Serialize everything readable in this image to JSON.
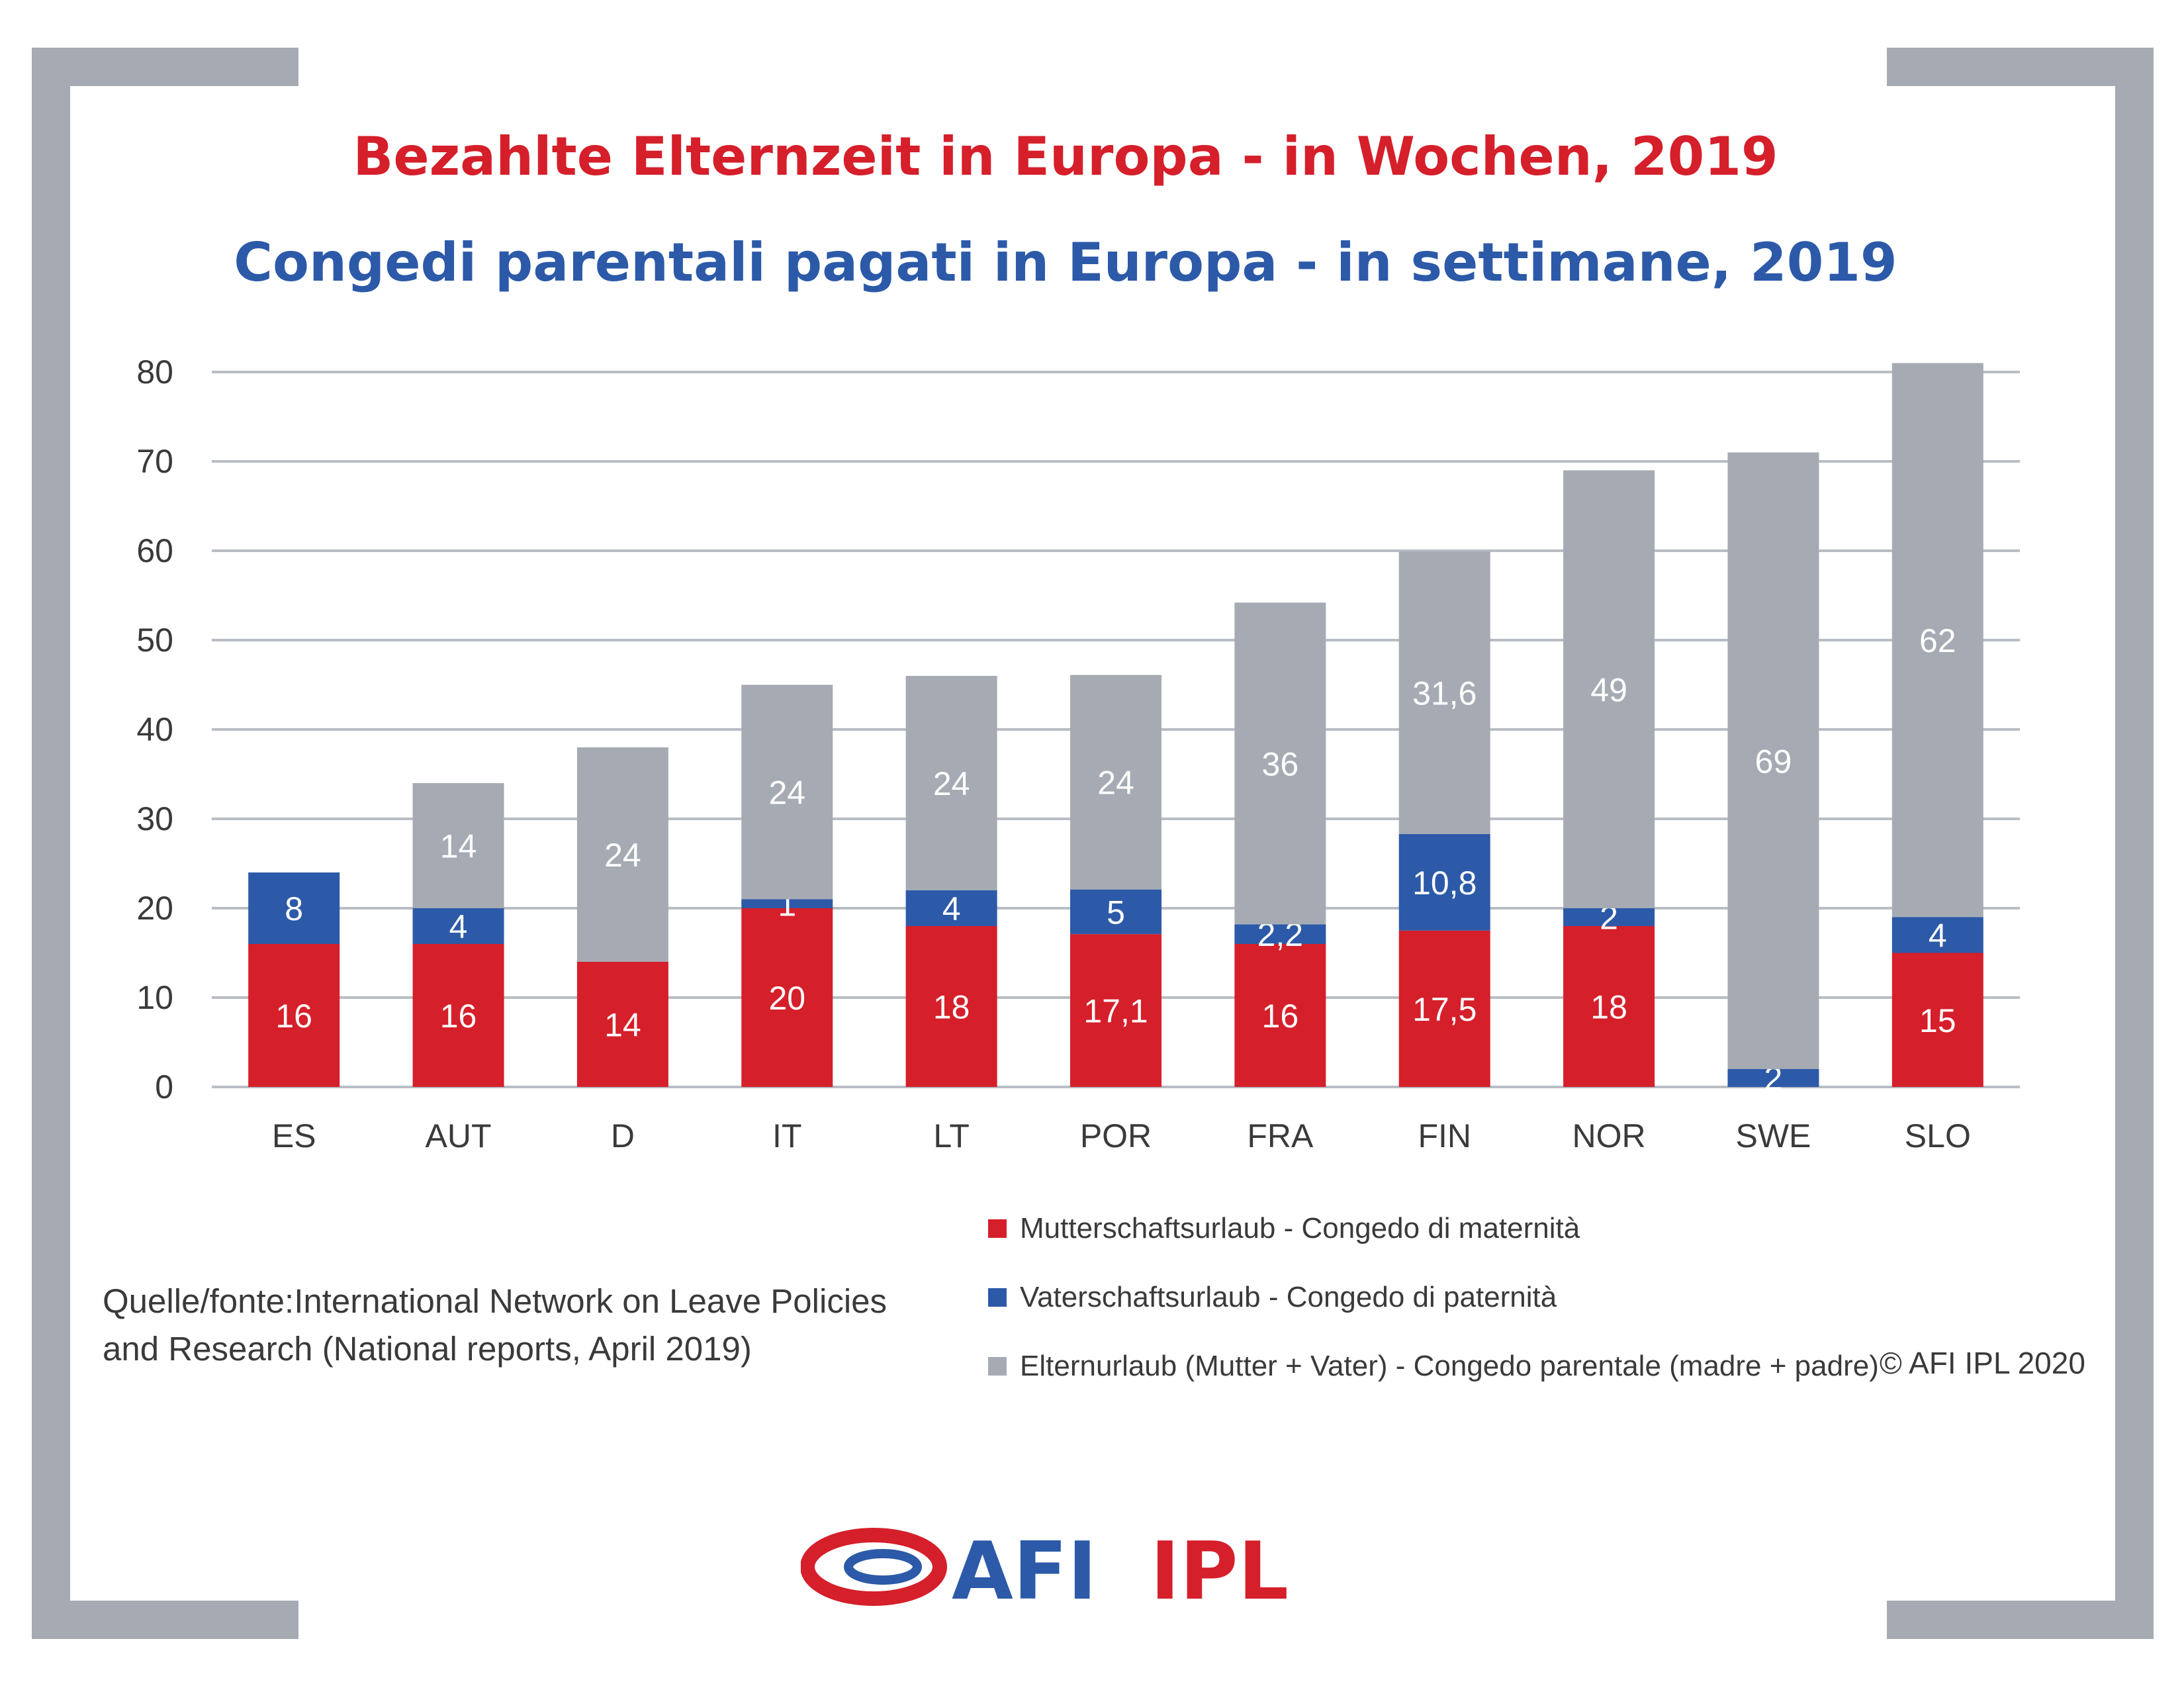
{
  "title_de": "Bezahlte Elternzeit in Europa - in Wochen, 2019",
  "title_it": "Congedi parentali pagati in Europa - in settimane, 2019",
  "chart_data": {
    "type": "bar",
    "stacked": true,
    "categories": [
      "ES",
      "AUT",
      "D",
      "IT",
      "LT",
      "POR",
      "FRA",
      "FIN",
      "NOR",
      "SWE",
      "SLO"
    ],
    "ylim": [
      0,
      80
    ],
    "yticks": [
      0,
      10,
      20,
      30,
      40,
      50,
      60,
      70,
      80
    ],
    "grid": true,
    "legend_position": "bottom-right",
    "series": [
      {
        "name": "Mutterschaftsurlaub - Congedo di maternità",
        "color": "#d51f2a",
        "values": [
          16,
          16,
          14,
          20,
          18,
          17.1,
          16,
          17.5,
          18,
          0,
          15
        ],
        "labels": [
          "16",
          "16",
          "14",
          "20",
          "18",
          "17,1",
          "16",
          "17,5",
          "18",
          "",
          "15"
        ]
      },
      {
        "name": "Vaterschaftsurlaub - Congedo di paternità",
        "color": "#2c5aa8",
        "values": [
          8,
          4,
          0,
          1,
          4,
          5,
          2.2,
          10.8,
          2,
          2,
          4
        ],
        "labels": [
          "8",
          "4",
          "",
          "1",
          "4",
          "5",
          "2,2",
          "10,8",
          "2",
          "2",
          "4"
        ]
      },
      {
        "name": "Elternurlaub (Mutter + Vater) - Congedo parentale (madre + padre)",
        "color": "#a6abb3",
        "values": [
          0,
          14,
          24,
          24,
          24,
          24,
          36,
          31.6,
          49,
          69,
          62
        ],
        "labels": [
          "",
          "14",
          "24",
          "24",
          "24",
          "24",
          "36",
          "31,6",
          "49",
          "69",
          "62"
        ]
      }
    ]
  },
  "source": {
    "line1": "Quelle/fonte:International Network on Leave Policies",
    "line2": "and Research (National reports, April 2019)"
  },
  "copyright": "© AFI IPL 2020",
  "logo": {
    "text_blue": "AFI",
    "text_red": "IPL"
  }
}
